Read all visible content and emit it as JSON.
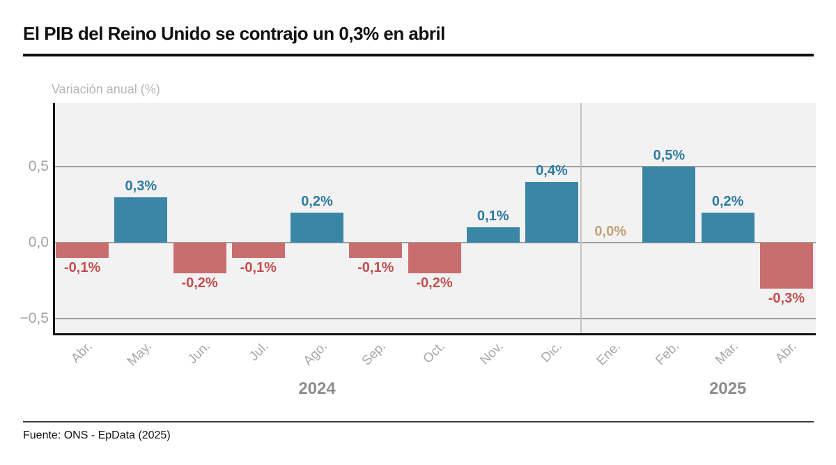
{
  "header": {
    "title": "El PIB del Reino Unido se contrajo un 0,3% en abril"
  },
  "footer": {
    "source": "Fuente: ONS - EpData (2025)"
  },
  "chart_data": {
    "type": "bar",
    "title": "El PIB del Reino Unido se contrajo un 0,3% en abril",
    "ylabel": "Variación anual (%)",
    "xlabel": "",
    "categories": [
      "Abr.",
      "May.",
      "Jun.",
      "Jul.",
      "Ago.",
      "Sep.",
      "Oct.",
      "Nov.",
      "Dic.",
      "Ene.",
      "Feb.",
      "Mar.",
      "Abr."
    ],
    "values": [
      -0.1,
      0.3,
      -0.2,
      -0.1,
      0.2,
      -0.1,
      -0.2,
      0.1,
      0.4,
      0.0,
      0.5,
      0.2,
      -0.3
    ],
    "bar_labels": [
      "-0,1%",
      "0,3%",
      "-0,2%",
      "-0,1%",
      "0,2%",
      "-0,1%",
      "-0,2%",
      "0,1%",
      "0,4%",
      "0,0%",
      "0,5%",
      "0,2%",
      "-0,3%"
    ],
    "y_ticks": [
      {
        "label": "0,5",
        "value": 0.5
      },
      {
        "label": "0,0",
        "value": 0.0
      },
      {
        "label": "−0,5",
        "value": -0.5
      }
    ],
    "ylim": [
      -0.61,
      0.92
    ],
    "grid": true,
    "legend": false,
    "year_labels": [
      {
        "label": "2024",
        "slot": 4
      },
      {
        "label": "2025",
        "slot": 11
      }
    ],
    "divider_after_index": 8,
    "colors": {
      "positive_bar": "#3a87a5",
      "negative_bar": "#c96e6e",
      "positive_label": "#2f7ba0",
      "negative_label": "#c14f4f",
      "zero_label": "#c3a178",
      "plot_background": "#f2f2f2",
      "gridline": "#9e9e9e",
      "axis": "#111111"
    }
  }
}
